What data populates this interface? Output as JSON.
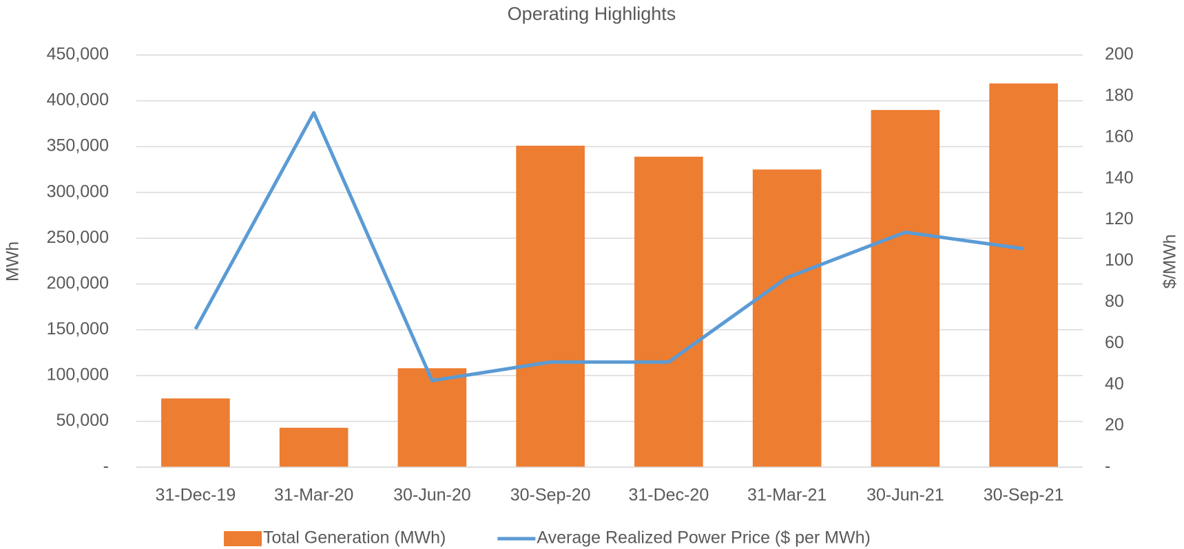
{
  "chart_data": {
    "type": "bar",
    "title": "Operating Highlights",
    "categories": [
      "31-Dec-19",
      "31-Mar-20",
      "30-Jun-20",
      "30-Sep-20",
      "31-Dec-20",
      "31-Mar-21",
      "30-Jun-21",
      "30-Sep-21"
    ],
    "series": [
      {
        "name": "Total Generation (MWh)",
        "type": "bar",
        "axis": "y",
        "color": "#ed7d31",
        "values": [
          75000,
          43000,
          108000,
          351000,
          339000,
          325000,
          390000,
          419000
        ]
      },
      {
        "name": "Average Realized Power Price ($ per MWh)",
        "type": "line",
        "axis": "y2",
        "color": "#5b9bd5",
        "values": [
          67,
          172,
          42,
          51,
          51,
          92,
          114,
          106
        ]
      }
    ],
    "ylabel": "MWh",
    "y2label": "$/MWh",
    "ylim": [
      0,
      450000
    ],
    "yticks": [
      {
        "value": 0,
        "label": "-"
      },
      {
        "value": 50000,
        "label": "50,000"
      },
      {
        "value": 100000,
        "label": "100,000"
      },
      {
        "value": 150000,
        "label": "150,000"
      },
      {
        "value": 200000,
        "label": "200,000"
      },
      {
        "value": 250000,
        "label": "250,000"
      },
      {
        "value": 300000,
        "label": "300,000"
      },
      {
        "value": 350000,
        "label": "350,000"
      },
      {
        "value": 400000,
        "label": "400,000"
      },
      {
        "value": 450000,
        "label": "450,000"
      }
    ],
    "y2lim": [
      0,
      200
    ],
    "y2ticks": [
      {
        "value": 0,
        "label": "-"
      },
      20,
      40,
      60,
      80,
      100,
      120,
      140,
      160,
      180,
      200
    ],
    "grid": true,
    "legend": "bottom"
  }
}
